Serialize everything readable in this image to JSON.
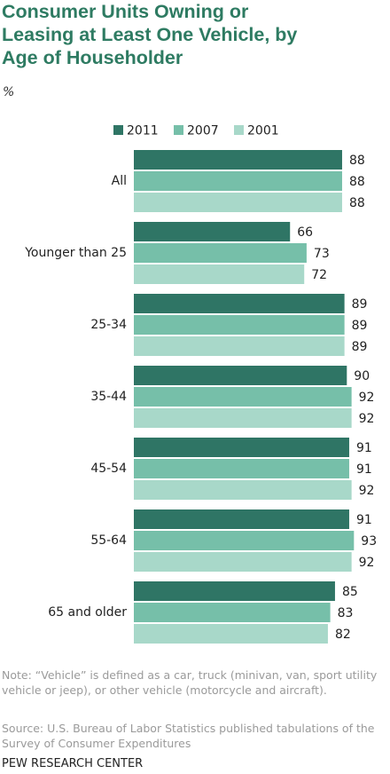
{
  "chart_data": {
    "type": "bar",
    "orientation": "horizontal",
    "title": "Consumer Units Owning or Leasing at Least One Vehicle, by Age of Householder",
    "subtitle": "%",
    "categories": [
      "All",
      "Younger than 25",
      "25-34",
      "35-44",
      "45-54",
      "55-64",
      "65 and older"
    ],
    "series": [
      {
        "name": "2011",
        "color": "#2f7565",
        "values": [
          88,
          66,
          89,
          90,
          91,
          91,
          85
        ]
      },
      {
        "name": "2007",
        "color": "#76bfa9",
        "values": [
          88,
          73,
          89,
          92,
          91,
          93,
          83
        ]
      },
      {
        "name": "2001",
        "color": "#a8d8c9",
        "values": [
          88,
          72,
          89,
          92,
          92,
          92,
          82
        ]
      }
    ],
    "note": "Note: “Vehicle” is defined as a car, truck (minivan, van, sport utility vehicle or jeep), or other vehicle (motorcycle and aircraft).",
    "source": "Source: U.S. Bureau of Labor Statistics published tabulations of the Survey of Consumer Expenditures",
    "credit": "PEW RESEARCH CENTER"
  }
}
